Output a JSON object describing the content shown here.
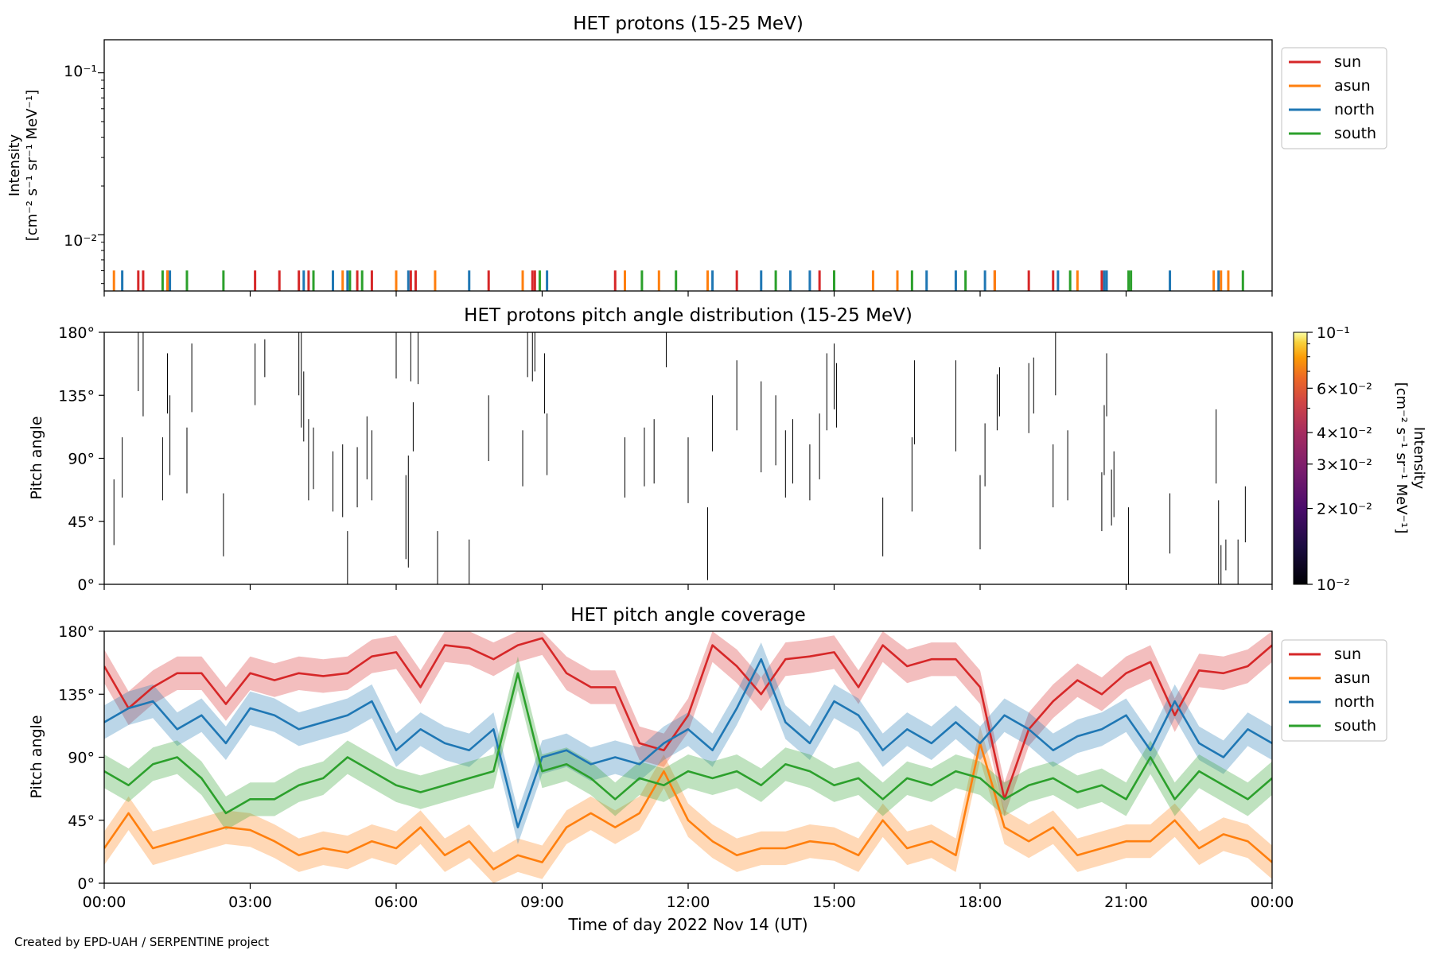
{
  "figure": {
    "xlabel": "Time of day 2022 Nov 14 (UT)",
    "x_tick_labels": [
      "00:00",
      "03:00",
      "06:00",
      "09:00",
      "12:00",
      "15:00",
      "18:00",
      "21:00",
      "00:00"
    ],
    "credit": "Created by EPD-UAH / SERPENTINE project"
  },
  "colors": {
    "sun": "#d62728",
    "asun": "#ff7f0e",
    "north": "#1f77b4",
    "south": "#2ca02c"
  },
  "chart_data": [
    {
      "type": "line",
      "title": "HET protons (15-25 MeV)",
      "ylabel_line1": "Intensity",
      "ylabel_line2": "[cm⁻² s⁻¹ sr⁻¹ MeV⁻¹]",
      "yscale": "log",
      "ylim": [
        0.0045,
        0.16
      ],
      "ytick_labels": [
        "10⁻¹",
        "10⁻²"
      ],
      "xlim_hours": [
        0,
        24
      ],
      "legend_position": "right-top",
      "series": [
        {
          "name": "sun",
          "value": 0.0055,
          "event_hours": [
            0.7,
            0.8,
            1.3,
            3.1,
            3.6,
            4.0,
            4.2,
            5.2,
            5.5,
            6.3,
            6.4,
            7.9,
            8.8,
            8.85,
            10.5,
            13.0,
            14.7,
            15.0,
            18.3,
            19.0,
            19.5,
            20.5
          ]
        },
        {
          "name": "asun",
          "value": 0.0055,
          "event_hours": [
            0.2,
            1.3,
            4.9,
            6.0,
            6.8,
            8.6,
            10.7,
            11.4,
            12.4,
            15.8,
            16.3,
            18.3,
            20.0,
            22.8,
            22.95,
            23.1
          ]
        },
        {
          "name": "north",
          "value": 0.0055,
          "event_hours": [
            0.37,
            1.35,
            4.1,
            4.7,
            5.0,
            6.25,
            7.5,
            9.1,
            12.5,
            13.5,
            14.1,
            14.5,
            16.9,
            17.5,
            18.1,
            19.6,
            20.55,
            20.6,
            21.9,
            22.9
          ]
        },
        {
          "name": "south",
          "value": 0.0055,
          "event_hours": [
            1.2,
            1.7,
            2.45,
            4.3,
            5.05,
            5.3,
            8.95,
            11.05,
            11.75,
            13.8,
            15.0,
            16.6,
            17.7,
            19.85,
            21.05,
            21.1,
            23.4
          ]
        }
      ]
    },
    {
      "type": "heatmap",
      "title": "HET protons pitch angle distribution (15-25 MeV)",
      "ylabel": "Pitch angle",
      "ylim": [
        0,
        180
      ],
      "ytick_labels": [
        "180°",
        "135°",
        "90°",
        "45°",
        "0°"
      ],
      "xlim_hours": [
        0,
        24
      ],
      "colorbar": {
        "label_line1": "Intensity",
        "label_line2": "[cm⁻² s⁻¹ sr⁻¹ MeV⁻¹]",
        "scale": "log",
        "range": [
          0.01,
          0.1
        ],
        "colormap": "inferno",
        "tick_labels": [
          "10⁻¹",
          "6×10⁻²",
          "4×10⁻²",
          "3×10⁻²",
          "2×10⁻²",
          "10⁻²"
        ]
      },
      "segments": [
        [
          0.2,
          28,
          75
        ],
        [
          0.37,
          62,
          105
        ],
        [
          0.7,
          138,
          180
        ],
        [
          0.8,
          120,
          180
        ],
        [
          1.2,
          60,
          105
        ],
        [
          1.3,
          122,
          165
        ],
        [
          1.35,
          78,
          135
        ],
        [
          1.7,
          65,
          112
        ],
        [
          1.8,
          123,
          172
        ],
        [
          2.45,
          20,
          65
        ],
        [
          3.1,
          128,
          172
        ],
        [
          3.3,
          148,
          175
        ],
        [
          4.0,
          135,
          180
        ],
        [
          4.05,
          112,
          180
        ],
        [
          4.1,
          102,
          152
        ],
        [
          4.2,
          60,
          118
        ],
        [
          4.3,
          68,
          112
        ],
        [
          4.7,
          52,
          95
        ],
        [
          4.9,
          48,
          100
        ],
        [
          5.0,
          0,
          38
        ],
        [
          5.2,
          55,
          98
        ],
        [
          5.4,
          75,
          120
        ],
        [
          5.5,
          60,
          110
        ],
        [
          6.0,
          147,
          180
        ],
        [
          6.2,
          18,
          78
        ],
        [
          6.25,
          12,
          92
        ],
        [
          6.3,
          145,
          180
        ],
        [
          6.35,
          95,
          130
        ],
        [
          6.45,
          143,
          180
        ],
        [
          6.85,
          0,
          38
        ],
        [
          7.5,
          0,
          32
        ],
        [
          7.9,
          88,
          135
        ],
        [
          8.6,
          70,
          110
        ],
        [
          8.7,
          148,
          180
        ],
        [
          8.8,
          145,
          180
        ],
        [
          8.85,
          152,
          180
        ],
        [
          9.05,
          122,
          165
        ],
        [
          9.1,
          78,
          122
        ],
        [
          10.7,
          62,
          105
        ],
        [
          11.1,
          70,
          112
        ],
        [
          11.3,
          72,
          118
        ],
        [
          11.55,
          155,
          180
        ],
        [
          12.0,
          58,
          105
        ],
        [
          12.4,
          3,
          55
        ],
        [
          12.5,
          95,
          135
        ],
        [
          13.0,
          110,
          160
        ],
        [
          13.5,
          80,
          145
        ],
        [
          13.8,
          85,
          135
        ],
        [
          14.0,
          62,
          110
        ],
        [
          14.15,
          72,
          118
        ],
        [
          14.5,
          60,
          100
        ],
        [
          14.7,
          75,
          122
        ],
        [
          14.85,
          110,
          165
        ],
        [
          15.0,
          125,
          172
        ],
        [
          15.05,
          112,
          158
        ],
        [
          16.0,
          20,
          62
        ],
        [
          16.6,
          52,
          105
        ],
        [
          16.65,
          100,
          160
        ],
        [
          17.5,
          95,
          160
        ],
        [
          18.0,
          25,
          78
        ],
        [
          18.1,
          70,
          115
        ],
        [
          18.35,
          110,
          150
        ],
        [
          18.4,
          120,
          155
        ],
        [
          19.0,
          108,
          158
        ],
        [
          19.1,
          122,
          162
        ],
        [
          19.5,
          55,
          100
        ],
        [
          19.55,
          135,
          180
        ],
        [
          19.8,
          60,
          110
        ],
        [
          20.5,
          38,
          80
        ],
        [
          20.55,
          78,
          128
        ],
        [
          20.6,
          120,
          165
        ],
        [
          20.7,
          42,
          82
        ],
        [
          20.75,
          48,
          95
        ],
        [
          21.05,
          0,
          55
        ],
        [
          21.9,
          22,
          65
        ],
        [
          22.85,
          72,
          125
        ],
        [
          22.9,
          0,
          60
        ],
        [
          22.95,
          0,
          28
        ],
        [
          23.05,
          10,
          32
        ],
        [
          23.3,
          0,
          32
        ],
        [
          23.45,
          30,
          70
        ]
      ]
    },
    {
      "type": "area",
      "title": "HET pitch angle coverage",
      "ylabel": "Pitch angle",
      "ylim": [
        0,
        180
      ],
      "ytick_labels": [
        "180°",
        "135°",
        "90°",
        "45°",
        "0°"
      ],
      "xlim_hours": [
        0,
        24
      ],
      "legend_position": "right-top",
      "band_halfwidth_deg": 12,
      "series": [
        {
          "name": "sun",
          "hours": [
            0,
            0.5,
            1,
            1.5,
            2,
            2.5,
            3,
            3.5,
            4,
            4.5,
            5,
            5.5,
            6,
            6.5,
            7,
            7.5,
            8,
            8.5,
            9,
            9.5,
            10,
            10.5,
            11,
            11.5,
            12,
            12.5,
            13,
            13.5,
            14,
            14.5,
            15,
            15.5,
            16,
            16.5,
            17,
            17.5,
            18,
            18.5,
            19,
            19.5,
            20,
            20.5,
            21,
            21.5,
            22,
            22.5,
            23,
            23.5,
            24
          ],
          "values": [
            155,
            125,
            140,
            150,
            150,
            128,
            150,
            145,
            150,
            148,
            150,
            162,
            165,
            140,
            170,
            168,
            160,
            170,
            175,
            150,
            140,
            140,
            100,
            95,
            120,
            170,
            155,
            135,
            160,
            162,
            165,
            140,
            170,
            155,
            160,
            160,
            140,
            60,
            110,
            130,
            145,
            135,
            150,
            158,
            120,
            152,
            150,
            155,
            170
          ]
        },
        {
          "name": "asun",
          "hours": [
            0,
            0.5,
            1,
            1.5,
            2,
            2.5,
            3,
            3.5,
            4,
            4.5,
            5,
            5.5,
            6,
            6.5,
            7,
            7.5,
            8,
            8.5,
            9,
            9.5,
            10,
            10.5,
            11,
            11.5,
            12,
            12.5,
            13,
            13.5,
            14,
            14.5,
            15,
            15.5,
            16,
            16.5,
            17,
            17.5,
            18,
            18.5,
            19,
            19.5,
            20,
            20.5,
            21,
            21.5,
            22,
            22.5,
            23,
            23.5,
            24
          ],
          "values": [
            25,
            50,
            25,
            30,
            35,
            40,
            38,
            30,
            20,
            25,
            22,
            30,
            25,
            40,
            20,
            30,
            10,
            20,
            15,
            40,
            50,
            40,
            50,
            80,
            45,
            30,
            20,
            25,
            25,
            30,
            28,
            20,
            45,
            25,
            30,
            20,
            100,
            40,
            30,
            40,
            20,
            25,
            30,
            30,
            45,
            25,
            35,
            30,
            15
          ]
        },
        {
          "name": "north",
          "hours": [
            0,
            0.5,
            1,
            1.5,
            2,
            2.5,
            3,
            3.5,
            4,
            4.5,
            5,
            5.5,
            6,
            6.5,
            7,
            7.5,
            8,
            8.5,
            9,
            9.5,
            10,
            10.5,
            11,
            11.5,
            12,
            12.5,
            13,
            13.5,
            14,
            14.5,
            15,
            15.5,
            16,
            16.5,
            17,
            17.5,
            18,
            18.5,
            19,
            19.5,
            20,
            20.5,
            21,
            21.5,
            22,
            22.5,
            23,
            23.5,
            24
          ],
          "values": [
            115,
            125,
            130,
            110,
            120,
            100,
            125,
            120,
            110,
            115,
            120,
            130,
            95,
            110,
            100,
            95,
            110,
            40,
            90,
            95,
            85,
            90,
            85,
            100,
            110,
            95,
            125,
            160,
            115,
            100,
            130,
            120,
            95,
            110,
            100,
            115,
            100,
            120,
            110,
            95,
            105,
            110,
            120,
            95,
            130,
            100,
            90,
            110,
            100
          ]
        },
        {
          "name": "south",
          "hours": [
            0,
            0.5,
            1,
            1.5,
            2,
            2.5,
            3,
            3.5,
            4,
            4.5,
            5,
            5.5,
            6,
            6.5,
            7,
            7.5,
            8,
            8.5,
            9,
            9.5,
            10,
            10.5,
            11,
            11.5,
            12,
            12.5,
            13,
            13.5,
            14,
            14.5,
            15,
            15.5,
            16,
            16.5,
            17,
            17.5,
            18,
            18.5,
            19,
            19.5,
            20,
            20.5,
            21,
            21.5,
            22,
            22.5,
            23,
            23.5,
            24
          ],
          "values": [
            80,
            70,
            85,
            90,
            75,
            50,
            60,
            60,
            70,
            75,
            90,
            80,
            70,
            65,
            70,
            75,
            80,
            150,
            80,
            85,
            75,
            60,
            75,
            70,
            80,
            75,
            80,
            70,
            85,
            80,
            70,
            75,
            60,
            75,
            70,
            80,
            75,
            60,
            70,
            75,
            65,
            70,
            60,
            90,
            60,
            80,
            70,
            60,
            75
          ]
        }
      ]
    }
  ]
}
